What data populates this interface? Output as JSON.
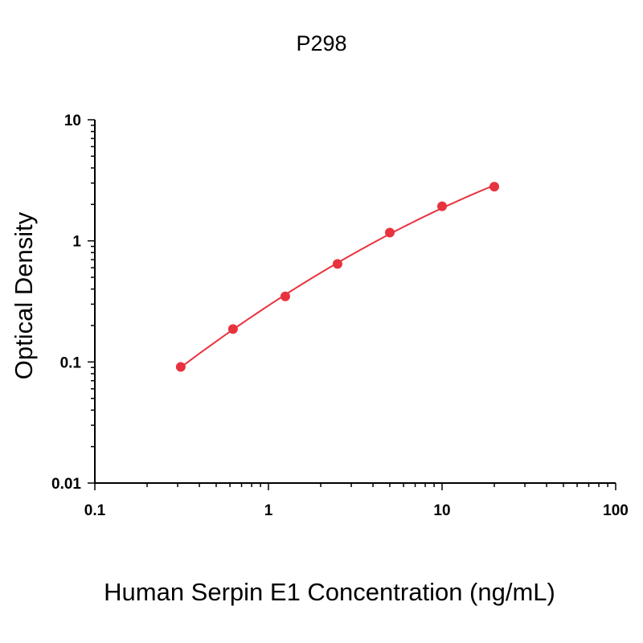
{
  "chart_data": {
    "type": "scatter",
    "title": "P298",
    "xlabel": "Human Serpin E1 Concentration (ng/mL)",
    "ylabel": "Optical Density",
    "x_scale": "log",
    "y_scale": "log",
    "xlim": [
      0.1,
      100
    ],
    "ylim": [
      0.01,
      10
    ],
    "x_tick_labels": [
      "0.1",
      "1",
      "10",
      "100"
    ],
    "y_tick_labels": [
      "0.01",
      "0.1",
      "1",
      "10"
    ],
    "grid": false,
    "legend": "none",
    "colors": {
      "series": "#e8333f",
      "axes": "#000000"
    },
    "series": [
      {
        "x": [
          0.3125,
          0.625,
          1.25,
          2.5,
          5,
          10,
          20
        ],
        "y": [
          0.091,
          0.187,
          0.348,
          0.645,
          1.17,
          1.93,
          2.8
        ],
        "fit": "curve"
      }
    ]
  }
}
